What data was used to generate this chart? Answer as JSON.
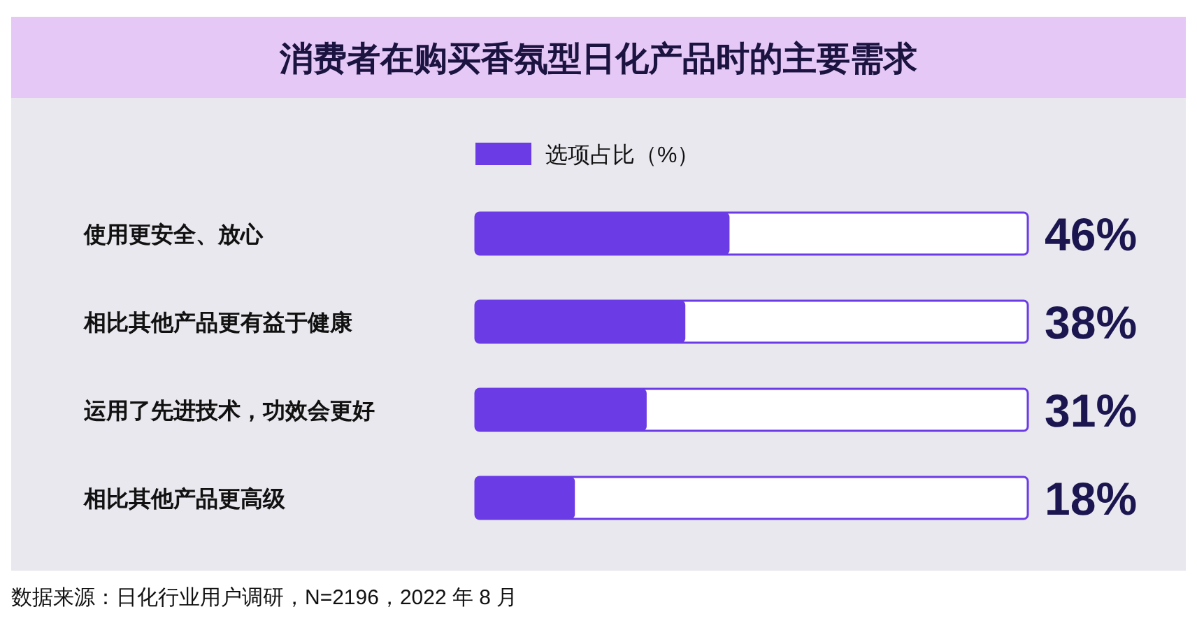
{
  "chart_data": {
    "type": "bar",
    "orientation": "horizontal",
    "title": "消费者在购买香氛型日化产品时的主要需求",
    "categories": [
      "使用更安全、放心",
      "相比其他产品更有益于健康",
      "运用了先进技术，功效会更好",
      "相比其他产品更高级"
    ],
    "series": [
      {
        "name": "选项占比（%）",
        "color": "#6b3be6",
        "values": [
          46,
          38,
          31,
          18
        ],
        "value_labels": [
          "46%",
          "38%",
          "31%",
          "18%"
        ]
      }
    ],
    "xlim": [
      0,
      100
    ],
    "tick_labels": "y",
    "legend": "top",
    "annotations": [
      "数据来源：日化行业用户调研，N=2196，2022 年 8 月"
    ]
  }
}
